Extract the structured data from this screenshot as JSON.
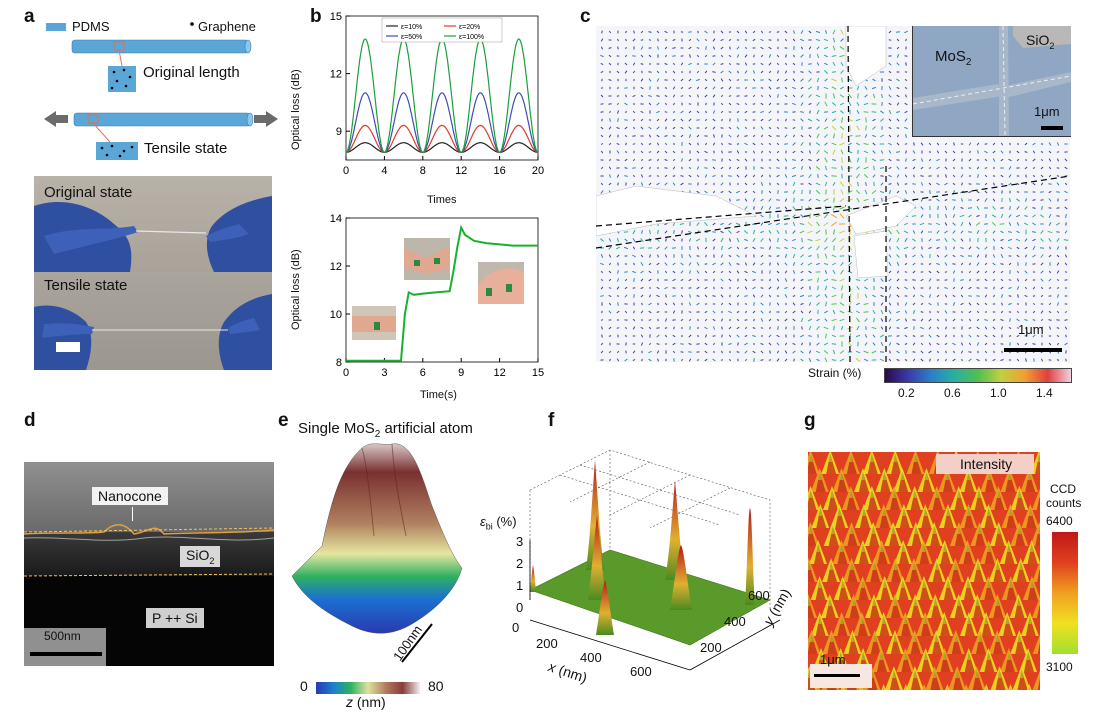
{
  "panels": {
    "a": {
      "letter": "a",
      "legend_pdms": "PDMS",
      "legend_graphene": "Graphene",
      "original_length": "Original length",
      "tensile_state": "Tensile state",
      "photo_original": "Original state",
      "photo_tensile": "Tensile state"
    },
    "b": {
      "letter": "b",
      "top_ylabel": "Optical loss (dB)",
      "top_xlabel": "Times",
      "bottom_ylabel": "Optical loss (dB)",
      "bottom_xlabel": "Time(s)"
    },
    "c": {
      "letter": "c",
      "inset_mos2": "MoS",
      "inset_mos2_sub": "2",
      "inset_sio2": "SiO",
      "inset_sio2_sub": "2",
      "inset_scale": "1μm",
      "main_scale": "1μm",
      "strain_label": "Strain (%)",
      "strain_ticks": [
        "0.2",
        "0.6",
        "1.0",
        "1.4"
      ]
    },
    "d": {
      "letter": "d",
      "nanocone": "Nanocone",
      "sio2": "SiO",
      "sio2_sub": "2",
      "si": "P ++ Si",
      "scale": "500nm"
    },
    "e": {
      "letter": "e",
      "title_pre": "Single MoS",
      "title_sub": "2",
      "title_post": " artificial atom",
      "scale": "100nm",
      "cb_min": "0",
      "cb_max": "80",
      "cb_label": "z",
      "cb_unit": " (nm)"
    },
    "f": {
      "letter": "f",
      "zlabel_main": "ε",
      "zlabel_sub": "bi",
      "zlabel_unit": " (%)",
      "xlabel": "x",
      "xlabel_unit": " (nm)",
      "ylabel": "y",
      "ylabel_unit": " (nm)",
      "z_ticks": [
        "0",
        "1",
        "2",
        "3"
      ],
      "x_ticks": [
        "0",
        "200",
        "400",
        "600"
      ],
      "y_ticks": [
        "200",
        "400",
        "600"
      ]
    },
    "g": {
      "letter": "g",
      "intensity": "Intensity",
      "cb_title1": "CCD",
      "cb_title2": "counts",
      "cb_max": "6400",
      "cb_min": "3100",
      "scale": "1μm"
    }
  },
  "chart_data": [
    {
      "type": "line",
      "panel": "b-top",
      "xlabel": "Times",
      "ylabel": "Optical loss (dB)",
      "xlim": [
        0,
        20
      ],
      "ylim": [
        7.5,
        15
      ],
      "x_ticks": [
        0,
        4,
        8,
        12,
        16,
        20
      ],
      "y_ticks": [
        9,
        12,
        15
      ],
      "legend_position": "top",
      "period": 4,
      "baseline": 7.9,
      "series": [
        {
          "name": "ε=10%",
          "color": "#222222",
          "peak": 8.4
        },
        {
          "name": "ε=20%",
          "color": "#e03a2a",
          "peak": 9.3
        },
        {
          "name": "ε=50%",
          "color": "#3a4fb0",
          "peak": 11.0
        },
        {
          "name": "ε=100%",
          "color": "#1aa03a",
          "peak": 13.8
        }
      ]
    },
    {
      "type": "line",
      "panel": "b-bottom",
      "xlabel": "Time(s)",
      "ylabel": "Optical loss (dB)",
      "xlim": [
        0,
        15
      ],
      "ylim": [
        8,
        14
      ],
      "x_ticks": [
        0,
        3,
        6,
        9,
        12,
        15
      ],
      "y_ticks": [
        8,
        10,
        12,
        14
      ],
      "series": [
        {
          "name": "",
          "color": "#19b030",
          "x": [
            0,
            4.3,
            4.6,
            4.9,
            5.3,
            6,
            7,
            8.1,
            8.4,
            8.7,
            9.0,
            9.3,
            10,
            11,
            12,
            13,
            14,
            15
          ],
          "y": [
            8.05,
            8.05,
            10.0,
            10.9,
            10.8,
            10.85,
            10.9,
            10.95,
            11.8,
            12.8,
            13.6,
            13.3,
            13.05,
            12.95,
            12.9,
            12.85,
            12.85,
            12.85
          ]
        }
      ]
    }
  ],
  "colors": {
    "pdms": "#5aa6d6",
    "arrow": "#6b6b6b",
    "strain_cmap": [
      "#2a0a4a",
      "#3a3aa8",
      "#2a80c8",
      "#2ab0a0",
      "#50c050",
      "#c0d040",
      "#f0a030",
      "#e04040",
      "#f0d0e0"
    ],
    "z_cmap": [
      "#2a3ab0",
      "#1a80d0",
      "#30b060",
      "#e0e0a0",
      "#b08060",
      "#8a3a3a",
      "#f0f0f0"
    ],
    "ccd_cmap": [
      "#a0e030",
      "#f0e020",
      "#f0a020",
      "#e04020",
      "#c01818"
    ]
  }
}
